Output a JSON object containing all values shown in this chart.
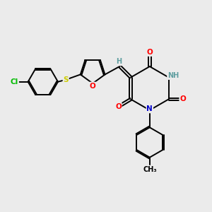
{
  "bg_color": "#ebebeb",
  "atom_colors": {
    "O": "#ff0000",
    "N": "#0000cd",
    "S": "#cccc00",
    "Cl": "#00bb00",
    "C": "#000000",
    "H": "#5f9ea0"
  },
  "bond_color": "#000000",
  "bond_width": 1.4,
  "dbo": 0.06
}
